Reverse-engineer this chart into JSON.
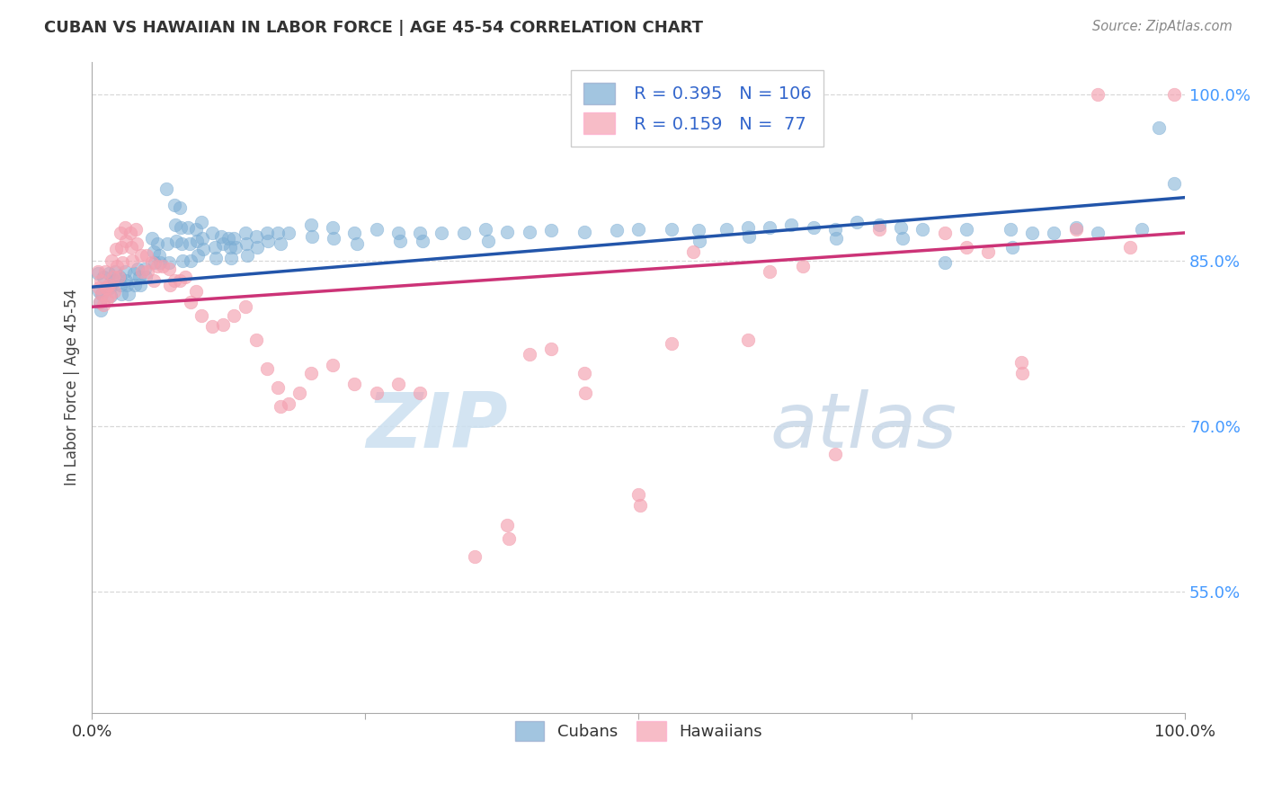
{
  "title": "CUBAN VS HAWAIIAN IN LABOR FORCE | AGE 45-54 CORRELATION CHART",
  "source": "Source: ZipAtlas.com",
  "ylabel": "In Labor Force | Age 45-54",
  "xlim": [
    0.0,
    1.0
  ],
  "ylim": [
    0.44,
    1.03
  ],
  "ytick_labels": [
    "55.0%",
    "70.0%",
    "85.0%",
    "100.0%"
  ],
  "ytick_values": [
    0.55,
    0.7,
    0.85,
    1.0
  ],
  "background_color": "#ffffff",
  "grid_color": "#d8d8d8",
  "blue_color": "#7badd4",
  "pink_color": "#f4a0b0",
  "blue_line_color": "#2255aa",
  "pink_line_color": "#cc3377",
  "legend_text_color": "#3366cc",
  "right_tick_color": "#4499ff",
  "blue_line_x": [
    0.0,
    1.0
  ],
  "blue_line_y": [
    0.826,
    0.907
  ],
  "pink_line_x": [
    0.0,
    1.0
  ],
  "pink_line_y": [
    0.808,
    0.875
  ],
  "watermark_color": "#cce0f0",
  "cubans": [
    [
      0.005,
      0.838
    ],
    [
      0.006,
      0.822
    ],
    [
      0.007,
      0.812
    ],
    [
      0.008,
      0.805
    ],
    [
      0.009,
      0.82
    ],
    [
      0.01,
      0.835
    ],
    [
      0.015,
      0.838
    ],
    [
      0.016,
      0.825
    ],
    [
      0.017,
      0.818
    ],
    [
      0.018,
      0.828
    ],
    [
      0.02,
      0.832
    ],
    [
      0.021,
      0.84
    ],
    [
      0.025,
      0.835
    ],
    [
      0.026,
      0.828
    ],
    [
      0.027,
      0.82
    ],
    [
      0.03,
      0.84
    ],
    [
      0.031,
      0.832
    ],
    [
      0.032,
      0.828
    ],
    [
      0.033,
      0.82
    ],
    [
      0.038,
      0.838
    ],
    [
      0.039,
      0.828
    ],
    [
      0.042,
      0.842
    ],
    [
      0.043,
      0.835
    ],
    [
      0.044,
      0.828
    ],
    [
      0.048,
      0.842
    ],
    [
      0.049,
      0.835
    ],
    [
      0.055,
      0.87
    ],
    [
      0.056,
      0.858
    ],
    [
      0.057,
      0.848
    ],
    [
      0.06,
      0.865
    ],
    [
      0.061,
      0.855
    ],
    [
      0.062,
      0.848
    ],
    [
      0.068,
      0.915
    ],
    [
      0.069,
      0.865
    ],
    [
      0.07,
      0.848
    ],
    [
      0.075,
      0.9
    ],
    [
      0.076,
      0.882
    ],
    [
      0.077,
      0.868
    ],
    [
      0.08,
      0.898
    ],
    [
      0.081,
      0.88
    ],
    [
      0.082,
      0.865
    ],
    [
      0.083,
      0.85
    ],
    [
      0.088,
      0.88
    ],
    [
      0.089,
      0.865
    ],
    [
      0.09,
      0.85
    ],
    [
      0.095,
      0.878
    ],
    [
      0.096,
      0.868
    ],
    [
      0.097,
      0.855
    ],
    [
      0.1,
      0.885
    ],
    [
      0.101,
      0.87
    ],
    [
      0.102,
      0.86
    ],
    [
      0.11,
      0.875
    ],
    [
      0.112,
      0.862
    ],
    [
      0.113,
      0.852
    ],
    [
      0.118,
      0.872
    ],
    [
      0.12,
      0.865
    ],
    [
      0.125,
      0.87
    ],
    [
      0.126,
      0.862
    ],
    [
      0.127,
      0.852
    ],
    [
      0.13,
      0.87
    ],
    [
      0.131,
      0.862
    ],
    [
      0.14,
      0.875
    ],
    [
      0.141,
      0.865
    ],
    [
      0.142,
      0.855
    ],
    [
      0.15,
      0.872
    ],
    [
      0.151,
      0.862
    ],
    [
      0.16,
      0.875
    ],
    [
      0.161,
      0.868
    ],
    [
      0.17,
      0.875
    ],
    [
      0.172,
      0.865
    ],
    [
      0.18,
      0.875
    ],
    [
      0.2,
      0.882
    ],
    [
      0.201,
      0.872
    ],
    [
      0.22,
      0.88
    ],
    [
      0.221,
      0.87
    ],
    [
      0.24,
      0.875
    ],
    [
      0.242,
      0.865
    ],
    [
      0.26,
      0.878
    ],
    [
      0.28,
      0.875
    ],
    [
      0.282,
      0.868
    ],
    [
      0.3,
      0.875
    ],
    [
      0.302,
      0.868
    ],
    [
      0.32,
      0.875
    ],
    [
      0.34,
      0.875
    ],
    [
      0.36,
      0.878
    ],
    [
      0.362,
      0.868
    ],
    [
      0.38,
      0.876
    ],
    [
      0.4,
      0.876
    ],
    [
      0.42,
      0.877
    ],
    [
      0.45,
      0.876
    ],
    [
      0.48,
      0.877
    ],
    [
      0.5,
      0.878
    ],
    [
      0.53,
      0.878
    ],
    [
      0.555,
      0.877
    ],
    [
      0.556,
      0.868
    ],
    [
      0.58,
      0.878
    ],
    [
      0.6,
      0.88
    ],
    [
      0.601,
      0.872
    ],
    [
      0.62,
      0.88
    ],
    [
      0.64,
      0.882
    ],
    [
      0.66,
      0.88
    ],
    [
      0.68,
      0.878
    ],
    [
      0.681,
      0.87
    ],
    [
      0.7,
      0.885
    ],
    [
      0.72,
      0.882
    ],
    [
      0.74,
      0.88
    ],
    [
      0.742,
      0.87
    ],
    [
      0.76,
      0.878
    ],
    [
      0.78,
      0.848
    ],
    [
      0.8,
      0.878
    ],
    [
      0.84,
      0.878
    ],
    [
      0.842,
      0.862
    ],
    [
      0.86,
      0.875
    ],
    [
      0.88,
      0.875
    ],
    [
      0.9,
      0.88
    ],
    [
      0.92,
      0.875
    ],
    [
      0.96,
      0.878
    ],
    [
      0.976,
      0.97
    ],
    [
      0.99,
      0.92
    ]
  ],
  "hawaiians": [
    [
      0.005,
      0.84
    ],
    [
      0.006,
      0.825
    ],
    [
      0.007,
      0.812
    ],
    [
      0.008,
      0.832
    ],
    [
      0.009,
      0.82
    ],
    [
      0.01,
      0.81
    ],
    [
      0.012,
      0.84
    ],
    [
      0.013,
      0.825
    ],
    [
      0.014,
      0.815
    ],
    [
      0.015,
      0.828
    ],
    [
      0.016,
      0.818
    ],
    [
      0.018,
      0.85
    ],
    [
      0.019,
      0.835
    ],
    [
      0.02,
      0.822
    ],
    [
      0.022,
      0.86
    ],
    [
      0.023,
      0.845
    ],
    [
      0.024,
      0.835
    ],
    [
      0.026,
      0.875
    ],
    [
      0.027,
      0.862
    ],
    [
      0.028,
      0.848
    ],
    [
      0.03,
      0.88
    ],
    [
      0.031,
      0.868
    ],
    [
      0.035,
      0.875
    ],
    [
      0.036,
      0.862
    ],
    [
      0.037,
      0.85
    ],
    [
      0.04,
      0.878
    ],
    [
      0.041,
      0.865
    ],
    [
      0.045,
      0.855
    ],
    [
      0.046,
      0.84
    ],
    [
      0.05,
      0.855
    ],
    [
      0.051,
      0.84
    ],
    [
      0.055,
      0.848
    ],
    [
      0.056,
      0.832
    ],
    [
      0.06,
      0.845
    ],
    [
      0.065,
      0.845
    ],
    [
      0.07,
      0.842
    ],
    [
      0.071,
      0.828
    ],
    [
      0.075,
      0.832
    ],
    [
      0.08,
      0.832
    ],
    [
      0.085,
      0.835
    ],
    [
      0.09,
      0.812
    ],
    [
      0.095,
      0.822
    ],
    [
      0.1,
      0.8
    ],
    [
      0.11,
      0.79
    ],
    [
      0.12,
      0.792
    ],
    [
      0.13,
      0.8
    ],
    [
      0.14,
      0.808
    ],
    [
      0.15,
      0.778
    ],
    [
      0.16,
      0.752
    ],
    [
      0.17,
      0.735
    ],
    [
      0.172,
      0.718
    ],
    [
      0.18,
      0.72
    ],
    [
      0.19,
      0.73
    ],
    [
      0.2,
      0.748
    ],
    [
      0.22,
      0.755
    ],
    [
      0.24,
      0.738
    ],
    [
      0.26,
      0.73
    ],
    [
      0.28,
      0.738
    ],
    [
      0.3,
      0.73
    ],
    [
      0.35,
      0.582
    ],
    [
      0.38,
      0.61
    ],
    [
      0.381,
      0.598
    ],
    [
      0.4,
      0.765
    ],
    [
      0.42,
      0.77
    ],
    [
      0.45,
      0.748
    ],
    [
      0.451,
      0.73
    ],
    [
      0.5,
      0.638
    ],
    [
      0.501,
      0.628
    ],
    [
      0.53,
      0.775
    ],
    [
      0.55,
      0.858
    ],
    [
      0.6,
      0.778
    ],
    [
      0.62,
      0.84
    ],
    [
      0.65,
      0.845
    ],
    [
      0.68,
      0.675
    ],
    [
      0.72,
      0.878
    ],
    [
      0.78,
      0.875
    ],
    [
      0.8,
      0.862
    ],
    [
      0.82,
      0.858
    ],
    [
      0.85,
      0.758
    ],
    [
      0.851,
      0.748
    ],
    [
      0.9,
      0.878
    ],
    [
      0.92,
      1.0
    ],
    [
      0.95,
      0.862
    ],
    [
      0.99,
      1.0
    ]
  ]
}
